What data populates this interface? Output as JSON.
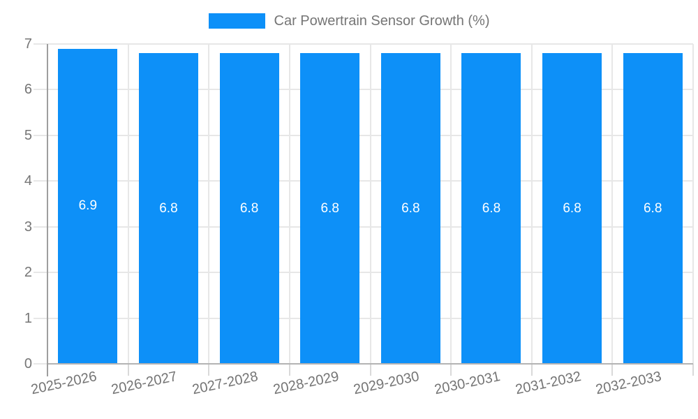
{
  "chart_data": {
    "type": "bar",
    "title": "Car Powertrain Sensor Growth (%)",
    "categories": [
      "2025-2026",
      "2026-2027",
      "2027-2028",
      "2028-2029",
      "2029-2030",
      "2030-2031",
      "2031-2032",
      "2032-2033"
    ],
    "values": [
      6.9,
      6.8,
      6.8,
      6.8,
      6.8,
      6.8,
      6.8,
      6.8
    ],
    "bar_labels": [
      "6.9",
      "6.8",
      "6.8",
      "6.8",
      "6.8",
      "6.8",
      "6.8",
      "6.8"
    ],
    "xlabel": "",
    "ylabel": "",
    "ylim": [
      0,
      7
    ],
    "yticks": [
      0,
      1,
      2,
      3,
      4,
      5,
      6,
      7
    ],
    "grid": true,
    "legend_position": "top",
    "colors": {
      "bar": "#0d90f8",
      "bar_label": "#ffffff",
      "axis_text": "#757575",
      "grid_line": "#e7e7e7",
      "tick_line": "#d9d9d9",
      "y_axis_line": "#9e9e9e",
      "x_axis_line": "#b3b3b3",
      "legend_text": "#757575",
      "background": "#ffffff"
    }
  }
}
